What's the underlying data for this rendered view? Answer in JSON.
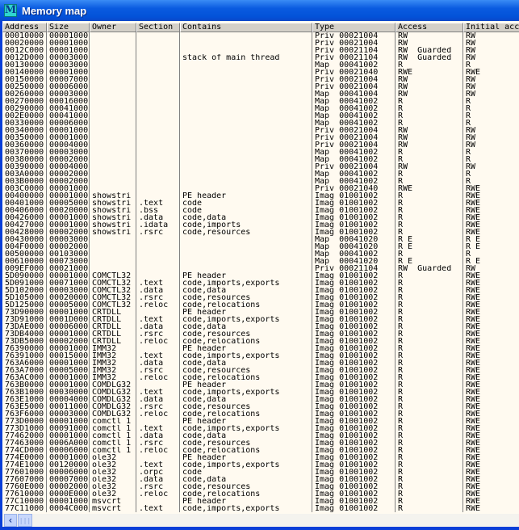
{
  "window": {
    "title": "Memory map",
    "icon_letter": "M"
  },
  "columns": [
    "Address",
    "Size",
    "Owner",
    "Section",
    "Contains",
    "Type",
    "Access",
    "Initial acc"
  ],
  "rows": [
    [
      "00010000",
      "00001000",
      "",
      "",
      "",
      "Priv 00021004",
      "RW",
      "RW"
    ],
    [
      "00020000",
      "00001000",
      "",
      "",
      "",
      "Priv 00021004",
      "RW",
      "RW"
    ],
    [
      "0012C000",
      "00001000",
      "",
      "",
      "",
      "Priv 00021104",
      "RW  Guarded",
      "RW"
    ],
    [
      "0012D000",
      "00003000",
      "",
      "",
      "stack of main thread",
      "Priv 00021104",
      "RW  Guarded",
      "RW"
    ],
    [
      "00130000",
      "00003000",
      "",
      "",
      "",
      "Map  00041002",
      "R",
      "R"
    ],
    [
      "00140000",
      "00001000",
      "",
      "",
      "",
      "Priv 00021040",
      "RWE",
      "RWE"
    ],
    [
      "00150000",
      "00007000",
      "",
      "",
      "",
      "Priv 00021004",
      "RW",
      "RW"
    ],
    [
      "00250000",
      "00006000",
      "",
      "",
      "",
      "Priv 00021004",
      "RW",
      "RW"
    ],
    [
      "00260000",
      "00003000",
      "",
      "",
      "",
      "Map  00041004",
      "RW",
      "RW"
    ],
    [
      "00270000",
      "00016000",
      "",
      "",
      "",
      "Map  00041002",
      "R",
      "R"
    ],
    [
      "00290000",
      "00041000",
      "",
      "",
      "",
      "Map  00041002",
      "R",
      "R"
    ],
    [
      "002E0000",
      "00041000",
      "",
      "",
      "",
      "Map  00041002",
      "R",
      "R"
    ],
    [
      "00330000",
      "00006000",
      "",
      "",
      "",
      "Map  00041002",
      "R",
      "R"
    ],
    [
      "00340000",
      "00001000",
      "",
      "",
      "",
      "Priv 00021004",
      "RW",
      "RW"
    ],
    [
      "00350000",
      "00001000",
      "",
      "",
      "",
      "Priv 00021004",
      "RW",
      "RW"
    ],
    [
      "00360000",
      "00004000",
      "",
      "",
      "",
      "Priv 00021004",
      "RW",
      "RW"
    ],
    [
      "00370000",
      "00003000",
      "",
      "",
      "",
      "Map  00041002",
      "R",
      "R"
    ],
    [
      "00380000",
      "00002000",
      "",
      "",
      "",
      "Map  00041002",
      "R",
      "R"
    ],
    [
      "00390000",
      "00004000",
      "",
      "",
      "",
      "Priv 00021004",
      "RW",
      "RW"
    ],
    [
      "003A0000",
      "00002000",
      "",
      "",
      "",
      "Map  00041002",
      "R",
      "R"
    ],
    [
      "003B0000",
      "00002000",
      "",
      "",
      "",
      "Map  00041002",
      "R",
      "R"
    ],
    [
      "003C0000",
      "00001000",
      "",
      "",
      "",
      "Priv 00021040",
      "RWE",
      "RWE"
    ],
    [
      "00400000",
      "00001000",
      "showstri",
      "",
      "PE header",
      "Imag 01001002",
      "R",
      "RWE"
    ],
    [
      "00401000",
      "00005000",
      "showstri",
      ".text",
      "code",
      "Imag 01001002",
      "R",
      "RWE"
    ],
    [
      "00406000",
      "00020000",
      "showstri",
      ".bss",
      "code",
      "Imag 01001002",
      "R",
      "RWE"
    ],
    [
      "00426000",
      "00001000",
      "showstri",
      ".data",
      "code,data",
      "Imag 01001002",
      "R",
      "RWE"
    ],
    [
      "00427000",
      "00001000",
      "showstri",
      ".idata",
      "code,imports",
      "Imag 01001002",
      "R",
      "RWE"
    ],
    [
      "00428000",
      "00002000",
      "showstri",
      ".rsrc",
      "code,resources",
      "Imag 01001002",
      "R",
      "RWE"
    ],
    [
      "00430000",
      "00003000",
      "",
      "",
      "",
      "Map  00041020",
      "R E",
      "R E"
    ],
    [
      "004F0000",
      "00002000",
      "",
      "",
      "",
      "Map  00041020",
      "R E",
      "R E"
    ],
    [
      "00500000",
      "00103000",
      "",
      "",
      "",
      "Map  00041002",
      "R",
      "R"
    ],
    [
      "00610000",
      "00073000",
      "",
      "",
      "",
      "Map  00041020",
      "R E",
      "R E"
    ],
    [
      "009EF000",
      "00021000",
      "",
      "",
      "",
      "Priv 00021104",
      "RW  Guarded",
      "RW"
    ],
    [
      "5D090000",
      "00001000",
      "COMCTL32",
      "",
      "PE header",
      "Imag 01001002",
      "R",
      "RWE"
    ],
    [
      "5D091000",
      "00071000",
      "COMCTL32",
      ".text",
      "code,imports,exports",
      "Imag 01001002",
      "R",
      "RWE"
    ],
    [
      "5D102000",
      "00003000",
      "COMCTL32",
      ".data",
      "code,data",
      "Imag 01001002",
      "R",
      "RWE"
    ],
    [
      "5D105000",
      "00020000",
      "COMCTL32",
      ".rsrc",
      "code,resources",
      "Imag 01001002",
      "R",
      "RWE"
    ],
    [
      "5D125000",
      "00005000",
      "COMCTL32",
      ".reloc",
      "code,relocations",
      "Imag 01001002",
      "R",
      "RWE"
    ],
    [
      "73D90000",
      "00001000",
      "CRTDLL",
      "",
      "PE header",
      "Imag 01001002",
      "R",
      "RWE"
    ],
    [
      "73D91000",
      "0001D000",
      "CRTDLL",
      ".text",
      "code,imports,exports",
      "Imag 01001002",
      "R",
      "RWE"
    ],
    [
      "73DAE000",
      "00006000",
      "CRTDLL",
      ".data",
      "code,data",
      "Imag 01001002",
      "R",
      "RWE"
    ],
    [
      "73DB4000",
      "00001000",
      "CRTDLL",
      ".rsrc",
      "code,resources",
      "Imag 01001002",
      "R",
      "RWE"
    ],
    [
      "73DB5000",
      "00002000",
      "CRTDLL",
      ".reloc",
      "code,relocations",
      "Imag 01001002",
      "R",
      "RWE"
    ],
    [
      "76390000",
      "00001000",
      "IMM32",
      "",
      "PE header",
      "Imag 01001002",
      "R",
      "RWE"
    ],
    [
      "76391000",
      "00015000",
      "IMM32",
      ".text",
      "code,imports,exports",
      "Imag 01001002",
      "R",
      "RWE"
    ],
    [
      "763A6000",
      "00001000",
      "IMM32",
      ".data",
      "code,data",
      "Imag 01001002",
      "R",
      "RWE"
    ],
    [
      "763A7000",
      "00005000",
      "IMM32",
      ".rsrc",
      "code,resources",
      "Imag 01001002",
      "R",
      "RWE"
    ],
    [
      "763AC000",
      "00001000",
      "IMM32",
      ".reloc",
      "code,relocations",
      "Imag 01001002",
      "R",
      "RWE"
    ],
    [
      "763B0000",
      "00001000",
      "COMDLG32",
      "",
      "PE header",
      "Imag 01001002",
      "R",
      "RWE"
    ],
    [
      "763B1000",
      "00030000",
      "COMDLG32",
      ".text",
      "code,imports,exports",
      "Imag 01001002",
      "R",
      "RWE"
    ],
    [
      "763E1000",
      "00004000",
      "COMDLG32",
      ".data",
      "code,data",
      "Imag 01001002",
      "R",
      "RWE"
    ],
    [
      "763E5000",
      "00011000",
      "COMDLG32",
      ".rsrc",
      "code,resources",
      "Imag 01001002",
      "R",
      "RWE"
    ],
    [
      "763F6000",
      "00003000",
      "COMDLG32",
      ".reloc",
      "code,relocations",
      "Imag 01001002",
      "R",
      "RWE"
    ],
    [
      "773D0000",
      "00001000",
      "comctl_1",
      "",
      "PE header",
      "Imag 01001002",
      "R",
      "RWE"
    ],
    [
      "773D1000",
      "00091000",
      "comctl_1",
      ".text",
      "code,imports,exports",
      "Imag 01001002",
      "R",
      "RWE"
    ],
    [
      "77462000",
      "00001000",
      "comctl_1",
      ".data",
      "code,data",
      "Imag 01001002",
      "R",
      "RWE"
    ],
    [
      "77463000",
      "0006A000",
      "comctl_1",
      ".rsrc",
      "code,resources",
      "Imag 01001002",
      "R",
      "RWE"
    ],
    [
      "774CD000",
      "00006000",
      "comctl_1",
      ".reloc",
      "code,relocations",
      "Imag 01001002",
      "R",
      "RWE"
    ],
    [
      "774E0000",
      "00001000",
      "ole32",
      "",
      "PE header",
      "Imag 01001002",
      "R",
      "RWE"
    ],
    [
      "774E1000",
      "00120000",
      "ole32",
      ".text",
      "code,imports,exports",
      "Imag 01001002",
      "R",
      "RWE"
    ],
    [
      "77601000",
      "00006000",
      "ole32",
      ".orpc",
      "code",
      "Imag 01001002",
      "R",
      "RWE"
    ],
    [
      "77607000",
      "00007000",
      "ole32",
      ".data",
      "code,data",
      "Imag 01001002",
      "R",
      "RWE"
    ],
    [
      "7760E000",
      "00002000",
      "ole32",
      ".rsrc",
      "code,resources",
      "Imag 01001002",
      "R",
      "RWE"
    ],
    [
      "77610000",
      "0000E000",
      "ole32",
      ".reloc",
      "code,relocations",
      "Imag 01001002",
      "R",
      "RWE"
    ],
    [
      "77C10000",
      "00001000",
      "msvcrt",
      "",
      "PE header",
      "Imag 01001002",
      "R",
      "RWE"
    ],
    [
      "77C11000",
      "0004C000",
      "msvcrt",
      ".text",
      "code,imports,exports",
      "Imag 01001002",
      "R",
      "RWE"
    ]
  ],
  "scrollbar": {
    "left_arrow": "‹",
    "thumb": "|||"
  }
}
